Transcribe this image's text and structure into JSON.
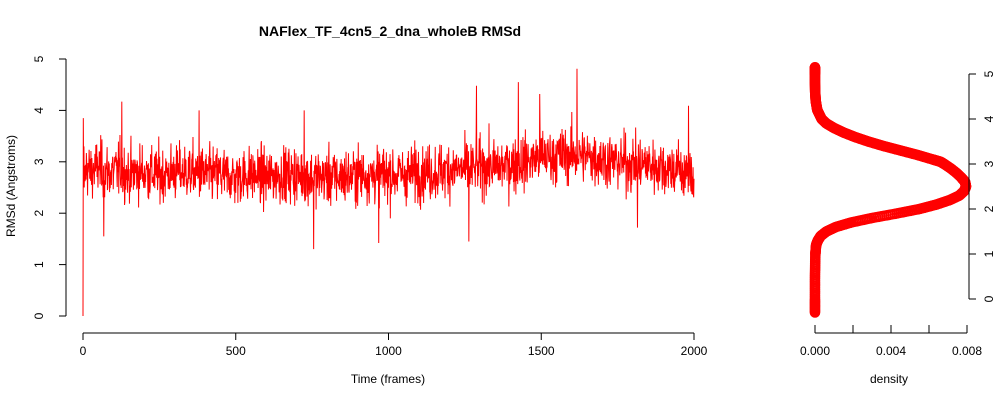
{
  "chart_data": [
    {
      "type": "line",
      "title": "NAFlex_TF_4cn5_2_dna_wholeB RMSd",
      "xlabel": "Time (frames)",
      "ylabel": "RMSd (Angstroms)",
      "xlim": [
        0,
        2000
      ],
      "ylim": [
        0,
        5
      ],
      "xticks": [
        0,
        500,
        1000,
        1500,
        2000
      ],
      "yticks": [
        0,
        1,
        2,
        3,
        4,
        5
      ],
      "grid": false,
      "color": "#ff0000",
      "series": [
        {
          "x": [
            0,
            1,
            2,
            3,
            4,
            10,
            25,
            50,
            75,
            100,
            120,
            150,
            175,
            200,
            250,
            300,
            350,
            400,
            450,
            500,
            550,
            600,
            650,
            700,
            750,
            800,
            850,
            900,
            950,
            1000,
            1050,
            1100,
            1150,
            1200,
            1250,
            1300,
            1350,
            1400,
            1450,
            1500,
            1550,
            1600,
            1650,
            1700,
            1750,
            1800,
            1850,
            1900,
            1950,
            2000
          ],
          "values": [
            0.0,
            3.85,
            2.7,
            3.3,
            2.5,
            2.9,
            2.8,
            2.9,
            2.8,
            2.8,
            2.85,
            2.75,
            2.8,
            2.8,
            2.75,
            2.8,
            2.8,
            2.75,
            2.75,
            2.7,
            2.75,
            2.7,
            2.75,
            2.75,
            2.7,
            2.7,
            2.7,
            2.75,
            2.75,
            2.75,
            2.75,
            2.8,
            2.8,
            2.85,
            2.85,
            2.9,
            2.9,
            2.95,
            3.0,
            3.1,
            3.1,
            3.15,
            3.1,
            3.05,
            3.0,
            2.95,
            2.95,
            2.9,
            2.85,
            2.7
          ],
          "peaks": [
            [
              127,
              4.17
            ],
            [
              380,
              4.0
            ],
            [
              724,
              4.0
            ],
            [
              1288,
              4.48
            ],
            [
              1425,
              4.55
            ],
            [
              1495,
              4.32
            ],
            [
              1617,
              4.81
            ],
            [
              1982,
              4.09
            ]
          ],
          "troughs": [
            [
              68,
              1.55
            ],
            [
              755,
              1.3
            ],
            [
              968,
              1.42
            ],
            [
              1263,
              1.45
            ],
            [
              1815,
              1.72
            ]
          ]
        }
      ]
    },
    {
      "type": "scatter",
      "xlabel": "density",
      "ylabel": "",
      "xlim": [
        0,
        0.008
      ],
      "ylim": [
        0,
        5
      ],
      "xticks": [
        "0.000",
        "0.004",
        "0.008"
      ],
      "yticks": [
        0,
        1,
        2,
        3,
        4,
        5
      ],
      "color": "#ff0000",
      "points": {
        "rmsd": [
          -0.3,
          0.0,
          0.5,
          1.0,
          1.2,
          1.3,
          1.4,
          1.5,
          1.6,
          1.7,
          1.8,
          1.9,
          2.0,
          2.1,
          2.2,
          2.3,
          2.4,
          2.5,
          2.6,
          2.65,
          2.7,
          2.8,
          2.9,
          3.0,
          3.05,
          3.1,
          3.2,
          3.3,
          3.4,
          3.5,
          3.6,
          3.7,
          3.8,
          3.9,
          4.0,
          4.2,
          4.4,
          4.6,
          4.8,
          5.0,
          5.1,
          5.15
        ],
        "density": [
          0.0,
          0.0,
          0.0,
          2e-05,
          6e-05,
          0.00015,
          0.0003,
          0.0006,
          0.0011,
          0.0019,
          0.003,
          0.0043,
          0.0055,
          0.0064,
          0.0071,
          0.0076,
          0.00785,
          0.00795,
          0.0079,
          0.0078,
          0.0077,
          0.00745,
          0.00715,
          0.0068,
          0.0066,
          0.0062,
          0.0054,
          0.0045,
          0.0036,
          0.0028,
          0.0021,
          0.0015,
          0.001,
          0.0006,
          0.00035,
          0.00012,
          4e-05,
          1e-05,
          0.0,
          0.0,
          0.0,
          0.0
        ]
      }
    }
  ]
}
